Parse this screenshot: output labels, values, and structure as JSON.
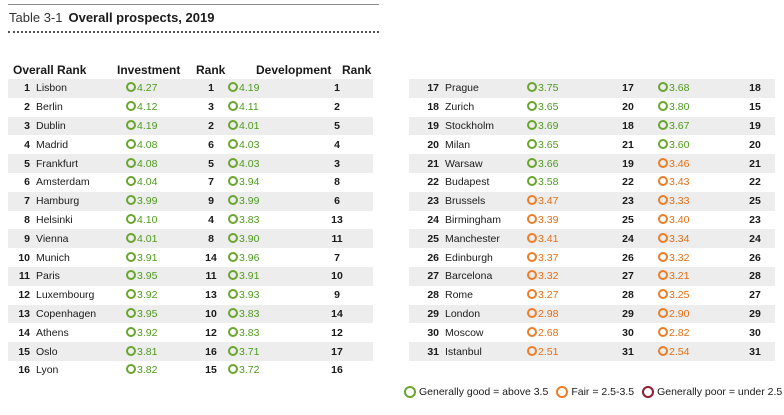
{
  "title": {
    "number": "Table 3-1",
    "text": "Overall prospects, 2019"
  },
  "headers": {
    "overall_rank": "Overall Rank",
    "investment": "Investment",
    "rank": "Rank",
    "development": "Development",
    "rank2": "Rank"
  },
  "status_colors": {
    "good": "#6aa52e",
    "fair": "#ee7d27",
    "poor": "#8e1b2e"
  },
  "rows_left": [
    {
      "n": "1",
      "city": "Lisbon",
      "inv": "4.27",
      "inv_s": "g",
      "inv_rank": "1",
      "dev": "4.19",
      "dev_s": "g",
      "dev_rank": "1"
    },
    {
      "n": "2",
      "city": "Berlin",
      "inv": "4.12",
      "inv_s": "g",
      "inv_rank": "3",
      "dev": "4.11",
      "dev_s": "g",
      "dev_rank": "2"
    },
    {
      "n": "3",
      "city": "Dublin",
      "inv": "4.19",
      "inv_s": "g",
      "inv_rank": "2",
      "dev": "4.01",
      "dev_s": "g",
      "dev_rank": "5"
    },
    {
      "n": "4",
      "city": "Madrid",
      "inv": "4.08",
      "inv_s": "g",
      "inv_rank": "6",
      "dev": "4.03",
      "dev_s": "g",
      "dev_rank": "4"
    },
    {
      "n": "5",
      "city": "Frankfurt",
      "inv": "4.08",
      "inv_s": "g",
      "inv_rank": "5",
      "dev": "4.03",
      "dev_s": "g",
      "dev_rank": "3"
    },
    {
      "n": "6",
      "city": "Amsterdam",
      "inv": "4.04",
      "inv_s": "g",
      "inv_rank": "7",
      "dev": "3.94",
      "dev_s": "g",
      "dev_rank": "8"
    },
    {
      "n": "7",
      "city": "Hamburg",
      "inv": "3.99",
      "inv_s": "g",
      "inv_rank": "9",
      "dev": "3.99",
      "dev_s": "g",
      "dev_rank": "6"
    },
    {
      "n": "8",
      "city": "Helsinki",
      "inv": "4.10",
      "inv_s": "g",
      "inv_rank": "4",
      "dev": "3.83",
      "dev_s": "g",
      "dev_rank": "13"
    },
    {
      "n": "9",
      "city": "Vienna",
      "inv": "4.01",
      "inv_s": "g",
      "inv_rank": "8",
      "dev": "3.90",
      "dev_s": "g",
      "dev_rank": "11"
    },
    {
      "n": "10",
      "city": "Munich",
      "inv": "3.91",
      "inv_s": "g",
      "inv_rank": "14",
      "dev": "3.96",
      "dev_s": "g",
      "dev_rank": "7"
    },
    {
      "n": "11",
      "city": "Paris",
      "inv": "3.95",
      "inv_s": "g",
      "inv_rank": "11",
      "dev": "3.91",
      "dev_s": "g",
      "dev_rank": "10"
    },
    {
      "n": "12",
      "city": "Luxembourg",
      "inv": "3.92",
      "inv_s": "g",
      "inv_rank": "13",
      "dev": "3.93",
      "dev_s": "g",
      "dev_rank": "9"
    },
    {
      "n": "13",
      "city": "Copenhagen",
      "inv": "3.95",
      "inv_s": "g",
      "inv_rank": "10",
      "dev": "3.83",
      "dev_s": "g",
      "dev_rank": "14"
    },
    {
      "n": "14",
      "city": "Athens",
      "inv": "3.92",
      "inv_s": "g",
      "inv_rank": "12",
      "dev": "3.83",
      "dev_s": "g",
      "dev_rank": "12"
    },
    {
      "n": "15",
      "city": "Oslo",
      "inv": "3.81",
      "inv_s": "g",
      "inv_rank": "16",
      "dev": "3.71",
      "dev_s": "g",
      "dev_rank": "17"
    },
    {
      "n": "16",
      "city": "Lyon",
      "inv": "3.82",
      "inv_s": "g",
      "inv_rank": "15",
      "dev": "3.72",
      "dev_s": "g",
      "dev_rank": "16"
    }
  ],
  "rows_right": [
    {
      "n": "17",
      "city": "Prague",
      "inv": "3.75",
      "inv_s": "g",
      "inv_rank": "17",
      "dev": "3.68",
      "dev_s": "g",
      "dev_rank": "18"
    },
    {
      "n": "18",
      "city": "Zurich",
      "inv": "3.65",
      "inv_s": "g",
      "inv_rank": "20",
      "dev": "3.80",
      "dev_s": "g",
      "dev_rank": "15"
    },
    {
      "n": "19",
      "city": "Stockholm",
      "inv": "3.69",
      "inv_s": "g",
      "inv_rank": "18",
      "dev": "3.67",
      "dev_s": "g",
      "dev_rank": "19"
    },
    {
      "n": "20",
      "city": "Milan",
      "inv": "3.65",
      "inv_s": "g",
      "inv_rank": "21",
      "dev": "3.60",
      "dev_s": "g",
      "dev_rank": "20"
    },
    {
      "n": "21",
      "city": "Warsaw",
      "inv": "3.66",
      "inv_s": "g",
      "inv_rank": "19",
      "dev": "3.46",
      "dev_s": "o",
      "dev_rank": "21"
    },
    {
      "n": "22",
      "city": "Budapest",
      "inv": "3.58",
      "inv_s": "g",
      "inv_rank": "22",
      "dev": "3.43",
      "dev_s": "o",
      "dev_rank": "22"
    },
    {
      "n": "23",
      "city": "Brussels",
      "inv": "3.47",
      "inv_s": "o",
      "inv_rank": "23",
      "dev": "3.33",
      "dev_s": "o",
      "dev_rank": "25"
    },
    {
      "n": "24",
      "city": "Birmingham",
      "inv": "3.39",
      "inv_s": "o",
      "inv_rank": "25",
      "dev": "3.40",
      "dev_s": "o",
      "dev_rank": "23"
    },
    {
      "n": "25",
      "city": "Manchester",
      "inv": "3.41",
      "inv_s": "o",
      "inv_rank": "24",
      "dev": "3.34",
      "dev_s": "o",
      "dev_rank": "24"
    },
    {
      "n": "26",
      "city": "Edinburgh",
      "inv": "3.37",
      "inv_s": "o",
      "inv_rank": "26",
      "dev": "3.32",
      "dev_s": "o",
      "dev_rank": "26"
    },
    {
      "n": "27",
      "city": "Barcelona",
      "inv": "3.32",
      "inv_s": "o",
      "inv_rank": "27",
      "dev": "3.21",
      "dev_s": "o",
      "dev_rank": "28"
    },
    {
      "n": "28",
      "city": "Rome",
      "inv": "3.27",
      "inv_s": "o",
      "inv_rank": "28",
      "dev": "3.25",
      "dev_s": "o",
      "dev_rank": "27"
    },
    {
      "n": "29",
      "city": "London",
      "inv": "2.98",
      "inv_s": "o",
      "inv_rank": "29",
      "dev": "2.90",
      "dev_s": "o",
      "dev_rank": "29"
    },
    {
      "n": "30",
      "city": "Moscow",
      "inv": "2.68",
      "inv_s": "o",
      "inv_rank": "30",
      "dev": "2.82",
      "dev_s": "o",
      "dev_rank": "30"
    },
    {
      "n": "31",
      "city": "Istanbul",
      "inv": "2.51",
      "inv_s": "o",
      "inv_rank": "31",
      "dev": "2.54",
      "dev_s": "o",
      "dev_rank": "31"
    }
  ],
  "legend": [
    {
      "label": "Generally good = above 3.5",
      "status": "g"
    },
    {
      "label": "Fair = 2.5-3.5",
      "status": "o"
    },
    {
      "label": "Generally poor = under 2.5",
      "status": "p"
    }
  ]
}
